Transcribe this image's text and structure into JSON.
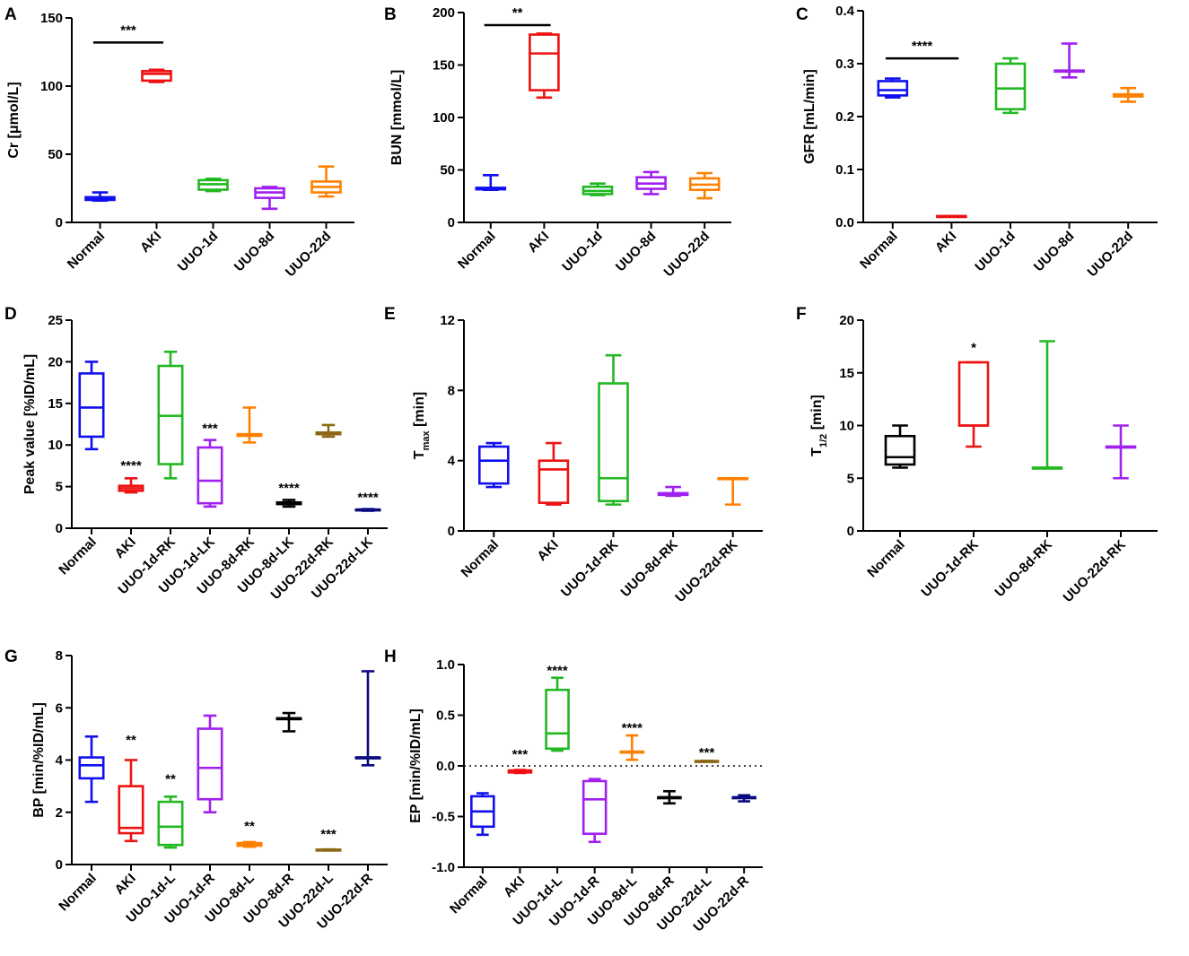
{
  "colors": {
    "blue": "#1010ee",
    "red": "#ee1111",
    "green": "#22b822",
    "purple": "#a020f0",
    "orange": "#ff8000",
    "black": "#000000",
    "brown": "#8b6914",
    "navy": "#0a0a80"
  },
  "chart_data": [
    {
      "id": "A",
      "panel": "A",
      "type": "box",
      "ylabel": "Cr [μmol/L]",
      "ylim": [
        0,
        150
      ],
      "yticks": [
        0,
        50,
        100,
        150
      ],
      "categories": [
        "Normal",
        "AKI",
        "UUO-1d",
        "UUO-8d",
        "UUO-22d"
      ],
      "boxes": [
        {
          "min": 16,
          "q1": 16.5,
          "median": 17.5,
          "q3": 18.5,
          "max": 22,
          "color": "blue"
        },
        {
          "min": 103,
          "q1": 104,
          "median": 109,
          "q3": 111,
          "max": 112,
          "color": "red"
        },
        {
          "min": 23,
          "q1": 24,
          "median": 28,
          "q3": 31,
          "max": 32,
          "color": "green"
        },
        {
          "min": 10,
          "q1": 18,
          "median": 22,
          "q3": 25,
          "max": 26,
          "color": "purple"
        },
        {
          "min": 19,
          "q1": 22,
          "median": 26,
          "q3": 30,
          "max": 41,
          "color": "orange"
        }
      ],
      "significance": [
        {
          "from": 0,
          "to": 1,
          "y": 132,
          "label": "***",
          "line": true
        }
      ]
    },
    {
      "id": "B",
      "panel": "B",
      "type": "box",
      "ylabel": "BUN [mmol/L]",
      "ylim": [
        0,
        200
      ],
      "yticks": [
        0,
        50,
        100,
        150,
        200
      ],
      "categories": [
        "Normal",
        "AKI",
        "UUO-1d",
        "UUO-8d",
        "UUO-22d"
      ],
      "boxes": [
        {
          "min": 31,
          "q1": 31.5,
          "median": 32,
          "q3": 33,
          "max": 45,
          "color": "blue"
        },
        {
          "min": 119,
          "q1": 126,
          "median": 161,
          "q3": 179,
          "max": 180,
          "color": "red"
        },
        {
          "min": 26,
          "q1": 27,
          "median": 30,
          "q3": 34,
          "max": 37,
          "color": "green"
        },
        {
          "min": 27,
          "q1": 32,
          "median": 37,
          "q3": 43,
          "max": 48,
          "color": "purple"
        },
        {
          "min": 23,
          "q1": 31,
          "median": 36,
          "q3": 42,
          "max": 47,
          "color": "orange"
        }
      ],
      "significance": [
        {
          "from": 0,
          "to": 1,
          "y": 188,
          "label": "**",
          "line": true
        }
      ]
    },
    {
      "id": "C",
      "panel": "C",
      "type": "box",
      "ylabel": "GFR [mL/min]",
      "ylim": [
        0,
        0.4
      ],
      "yticks": [
        0.0,
        0.1,
        0.2,
        0.3,
        0.4
      ],
      "tick_decimals": 1,
      "categories": [
        "Normal",
        "AKI",
        "UUO-1d",
        "UUO-8d",
        "UUO-22d"
      ],
      "boxes": [
        {
          "min": 0.236,
          "q1": 0.24,
          "median": 0.25,
          "q3": 0.267,
          "max": 0.272,
          "color": "blue"
        },
        {
          "min": 0.011,
          "q1": 0.011,
          "median": 0.0115,
          "q3": 0.012,
          "max": 0.012,
          "color": "red"
        },
        {
          "min": 0.207,
          "q1": 0.214,
          "median": 0.253,
          "q3": 0.3,
          "max": 0.31,
          "color": "green"
        },
        {
          "min": 0.274,
          "q1": 0.285,
          "median": 0.286,
          "q3": 0.287,
          "max": 0.338,
          "color": "purple"
        },
        {
          "min": 0.228,
          "q1": 0.238,
          "median": 0.24,
          "q3": 0.242,
          "max": 0.254,
          "color": "orange"
        }
      ],
      "significance": [
        {
          "from": 0,
          "to": 1,
          "y": 0.31,
          "label": "****",
          "line": true
        }
      ]
    },
    {
      "id": "D",
      "panel": "D",
      "type": "box",
      "ylabel": "Peak value [%ID/mL]",
      "ylim": [
        0,
        25
      ],
      "yticks": [
        0,
        5,
        10,
        15,
        20,
        25
      ],
      "categories": [
        "Normal",
        "AKI",
        "UUO-1d-RK",
        "UUO-1d-LK",
        "UUO-8d-RK",
        "UUO-8d-LK",
        "UUO-22d-RK",
        "UUO-22d-LK"
      ],
      "boxes": [
        {
          "min": 9.5,
          "q1": 11,
          "median": 14.5,
          "q3": 18.6,
          "max": 20,
          "color": "blue"
        },
        {
          "min": 4.3,
          "q1": 4.5,
          "median": 4.8,
          "q3": 5.1,
          "max": 6,
          "color": "red"
        },
        {
          "min": 6,
          "q1": 7.7,
          "median": 13.5,
          "q3": 19.5,
          "max": 21.2,
          "color": "green"
        },
        {
          "min": 2.6,
          "q1": 3,
          "median": 5.7,
          "q3": 9.7,
          "max": 10.6,
          "color": "purple"
        },
        {
          "min": 10.3,
          "q1": 11.1,
          "median": 11.2,
          "q3": 11.3,
          "max": 14.5,
          "color": "orange"
        },
        {
          "min": 2.6,
          "q1": 2.9,
          "median": 3.0,
          "q3": 3.1,
          "max": 3.4,
          "color": "black"
        },
        {
          "min": 11.0,
          "q1": 11.3,
          "median": 11.4,
          "q3": 11.5,
          "max": 12.4,
          "color": "brown"
        },
        {
          "min": 2.1,
          "q1": 2.15,
          "median": 2.2,
          "q3": 2.25,
          "max": 2.3,
          "color": "navy"
        }
      ],
      "significance": [
        {
          "at": 1,
          "y": 7.0,
          "label": "****"
        },
        {
          "at": 3,
          "y": 11.5,
          "label": "***"
        },
        {
          "at": 5,
          "y": 4.3,
          "label": "****"
        },
        {
          "at": 7,
          "y": 3.2,
          "label": "****"
        }
      ]
    },
    {
      "id": "E",
      "panel": "E",
      "type": "box",
      "ylabel": "Tmax [min]",
      "ylabel_main": "T",
      "ylabel_sub": "max",
      "ylabel_rest": " [min]",
      "ylim": [
        0,
        12
      ],
      "yticks": [
        0,
        4,
        8,
        12
      ],
      "categories": [
        "Normal",
        "AKI",
        "UUO-1d-RK",
        "UUO-8d-RK",
        "UUO-22d-RK"
      ],
      "boxes": [
        {
          "min": 2.5,
          "q1": 2.7,
          "median": 4,
          "q3": 4.8,
          "max": 5,
          "color": "blue"
        },
        {
          "min": 1.5,
          "q1": 1.6,
          "median": 3.5,
          "q3": 4.0,
          "max": 5,
          "color": "red"
        },
        {
          "min": 1.5,
          "q1": 1.7,
          "median": 3,
          "q3": 8.4,
          "max": 10,
          "color": "green"
        },
        {
          "min": 2.0,
          "q1": 2.05,
          "median": 2.1,
          "q3": 2.15,
          "max": 2.5,
          "color": "purple"
        },
        {
          "min": 1.5,
          "q1": 3.0,
          "median": 3.0,
          "q3": 3.0,
          "max": 3.0,
          "color": "orange"
        }
      ],
      "significance": []
    },
    {
      "id": "F",
      "panel": "F",
      "type": "box",
      "ylabel": "T1/2 [min]",
      "ylabel_main": "T",
      "ylabel_sub": "1/2",
      "ylabel_rest": " [min]",
      "ylim": [
        0,
        20
      ],
      "yticks": [
        0,
        5,
        10,
        15,
        20
      ],
      "categories": [
        "Normal",
        "UUO-1d-RK",
        "UUO-8d-RK",
        "UUO-22d-RK"
      ],
      "boxes": [
        {
          "min": 6,
          "q1": 6.3,
          "median": 7,
          "q3": 9,
          "max": 10,
          "color": "black"
        },
        {
          "min": 8,
          "q1": 10,
          "median": 10,
          "q3": 16,
          "max": 16,
          "color": "red"
        },
        {
          "min": 6,
          "q1": 6,
          "median": 6,
          "q3": 6,
          "max": 18,
          "color": "green"
        },
        {
          "min": 5,
          "q1": 8,
          "median": 8,
          "q3": 8,
          "max": 10,
          "color": "purple"
        }
      ],
      "significance": [
        {
          "at": 1,
          "y": 17,
          "label": "*"
        }
      ]
    },
    {
      "id": "G",
      "panel": "G",
      "type": "box",
      "ylabel": "BP [min/%ID/mL]",
      "ylim": [
        0,
        8
      ],
      "yticks": [
        0,
        2,
        4,
        6,
        8
      ],
      "categories": [
        "Normal",
        "AKI",
        "UUO-1d-L",
        "UUO-1d-R",
        "UUO-8d-L",
        "UUO-8d-R",
        "UUO-22d-L",
        "UUO-22d-R"
      ],
      "boxes": [
        {
          "min": 2.4,
          "q1": 3.3,
          "median": 3.8,
          "q3": 4.1,
          "max": 4.9,
          "color": "blue"
        },
        {
          "min": 0.9,
          "q1": 1.2,
          "median": 1.4,
          "q3": 3.0,
          "max": 4.0,
          "color": "red"
        },
        {
          "min": 0.65,
          "q1": 0.75,
          "median": 1.45,
          "q3": 2.4,
          "max": 2.6,
          "color": "green"
        },
        {
          "min": 2.0,
          "q1": 2.5,
          "median": 3.7,
          "q3": 5.2,
          "max": 5.7,
          "color": "purple"
        },
        {
          "min": 0.68,
          "q1": 0.72,
          "median": 0.77,
          "q3": 0.82,
          "max": 0.86,
          "color": "orange"
        },
        {
          "min": 5.1,
          "q1": 5.6,
          "median": 5.6,
          "q3": 5.6,
          "max": 5.8,
          "color": "black"
        },
        {
          "min": 0.54,
          "q1": 0.55,
          "median": 0.56,
          "q3": 0.57,
          "max": 0.58,
          "color": "brown"
        },
        {
          "min": 3.8,
          "q1": 4.1,
          "median": 4.1,
          "q3": 4.1,
          "max": 7.4,
          "color": "navy"
        }
      ],
      "significance": [
        {
          "at": 1,
          "y": 4.6,
          "label": "**"
        },
        {
          "at": 2,
          "y": 3.1,
          "label": "**"
        },
        {
          "at": 4,
          "y": 1.3,
          "label": "**"
        },
        {
          "at": 6,
          "y": 1.0,
          "label": "***"
        }
      ]
    },
    {
      "id": "H",
      "panel": "H",
      "type": "box",
      "ylabel": "EP [min/%ID/mL]",
      "ylim": [
        -1.0,
        1.0
      ],
      "yticks": [
        -1.0,
        -0.5,
        0.0,
        0.5,
        1.0
      ],
      "tick_decimals": 1,
      "zero_line": true,
      "categories": [
        "Normal",
        "AKI",
        "UUO-1d-L",
        "UUO-1d-R",
        "UUO-8d-L",
        "UUO-8d-R",
        "UUO-22d-L",
        "UUO-22d-R"
      ],
      "boxes": [
        {
          "min": -0.68,
          "q1": -0.6,
          "median": -0.45,
          "q3": -0.3,
          "max": -0.27,
          "color": "blue"
        },
        {
          "min": -0.07,
          "q1": -0.065,
          "median": -0.055,
          "q3": -0.045,
          "max": -0.04,
          "color": "red"
        },
        {
          "min": 0.15,
          "q1": 0.17,
          "median": 0.32,
          "q3": 0.75,
          "max": 0.87,
          "color": "green"
        },
        {
          "min": -0.75,
          "q1": -0.67,
          "median": -0.33,
          "q3": -0.15,
          "max": -0.13,
          "color": "purple"
        },
        {
          "min": 0.06,
          "q1": 0.14,
          "median": 0.14,
          "q3": 0.14,
          "max": 0.3,
          "color": "orange"
        },
        {
          "min": -0.37,
          "q1": -0.31,
          "median": -0.31,
          "q3": -0.31,
          "max": -0.25,
          "color": "black"
        },
        {
          "min": 0.04,
          "q1": 0.042,
          "median": 0.045,
          "q3": 0.048,
          "max": 0.05,
          "color": "brown"
        },
        {
          "min": -0.35,
          "q1": -0.31,
          "median": -0.31,
          "q3": -0.31,
          "max": -0.29,
          "color": "navy"
        }
      ],
      "significance": [
        {
          "at": 1,
          "y": 0.07,
          "label": "***"
        },
        {
          "at": 2,
          "y": 0.9,
          "label": "****"
        },
        {
          "at": 4,
          "y": 0.33,
          "label": "****"
        },
        {
          "at": 6,
          "y": 0.09,
          "label": "***"
        }
      ]
    }
  ]
}
